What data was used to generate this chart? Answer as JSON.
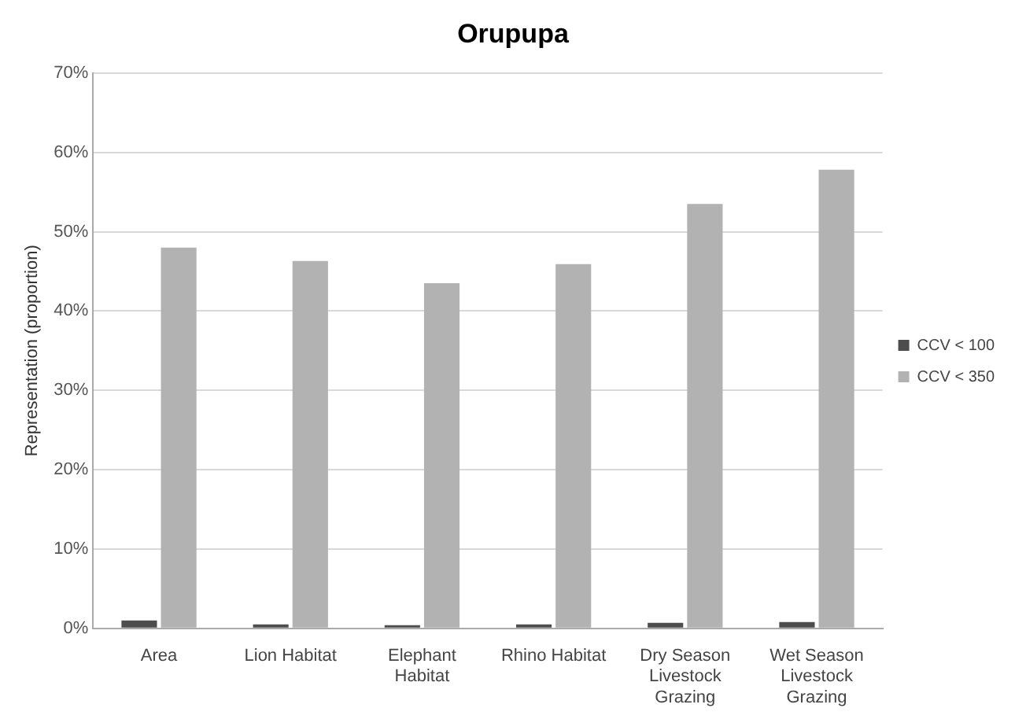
{
  "chart_data": {
    "type": "bar",
    "title": "Orupupa",
    "ylabel": "Representation (proportion)",
    "categories": [
      "Area",
      "Lion Habitat",
      "Elephant Habitat",
      "Rhino Habitat",
      "Dry Season Livestock Grazing",
      "Wet Season Livestock Grazing"
    ],
    "series": [
      {
        "name": "CCV < 100",
        "color": "#4d4d4d",
        "values": [
          1.0,
          0.5,
          0.4,
          0.5,
          0.7,
          0.8
        ]
      },
      {
        "name": "CCV < 350",
        "color": "#b2b2b2",
        "values": [
          48.0,
          46.3,
          43.5,
          45.9,
          53.5,
          57.8
        ]
      }
    ],
    "ylim": [
      0,
      70
    ],
    "yticks": [
      {
        "value": 0,
        "label": "0%"
      },
      {
        "value": 10,
        "label": "10%"
      },
      {
        "value": 20,
        "label": "20%"
      },
      {
        "value": 30,
        "label": "30%"
      },
      {
        "value": 40,
        "label": "40%"
      },
      {
        "value": 50,
        "label": "50%"
      },
      {
        "value": 60,
        "label": "60%"
      },
      {
        "value": 70,
        "label": "70%"
      }
    ],
    "grid": "y",
    "legend": "right"
  }
}
